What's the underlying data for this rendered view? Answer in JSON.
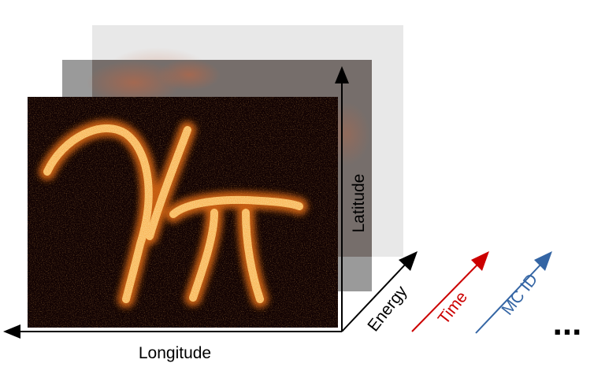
{
  "axes": {
    "longitude": {
      "label": "Longitude"
    },
    "latitude": {
      "label": "Latitude"
    },
    "energy": {
      "label": "Energy"
    },
    "time": {
      "label": "Time"
    },
    "mc_id": {
      "label": "MC ID"
    },
    "more": {
      "label": "..."
    }
  },
  "colors": {
    "black": "#000000",
    "time_red": "#cc0000",
    "mc_id_blue": "#3465a4",
    "back_plane": "#e8e8e8",
    "middle_plane": "#9a9a9a",
    "front_plane": "#120303",
    "glow": "#ffb040"
  },
  "image_layers": [
    {
      "name": "back-layer",
      "content": "faint emission map"
    },
    {
      "name": "middle-layer",
      "content": "faint emission map"
    },
    {
      "name": "front-layer",
      "content": "gamma-pi emission map"
    }
  ]
}
